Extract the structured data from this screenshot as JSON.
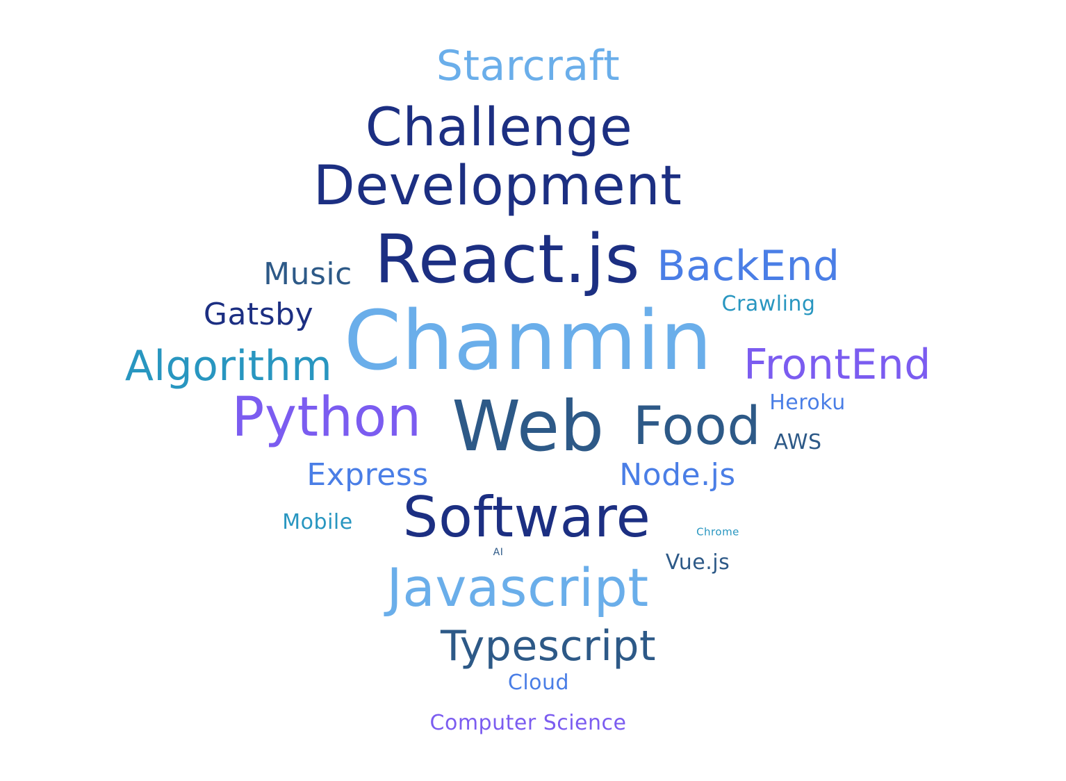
{
  "palette": {
    "light_blue": "#6aaeea",
    "navy": "#1c2f82",
    "blue": "#4a7ee6",
    "teal_blue": "#2896c0",
    "purple": "#7b5cf0",
    "slate": "#2d5987"
  },
  "words": [
    {
      "text": "Starcraft",
      "color": "#6aaeea"
    },
    {
      "text": "Challenge",
      "color": "#1c2f82"
    },
    {
      "text": "Development",
      "color": "#1c2f82"
    },
    {
      "text": "React.js",
      "color": "#1c2f82"
    },
    {
      "text": "BackEnd",
      "color": "#4a7ee6"
    },
    {
      "text": "Music",
      "color": "#2d5987"
    },
    {
      "text": "Crawling",
      "color": "#2896c0"
    },
    {
      "text": "Gatsby",
      "color": "#1c2f82"
    },
    {
      "text": "Chanmin",
      "color": "#6aaeea"
    },
    {
      "text": "Algorithm",
      "color": "#2896c0"
    },
    {
      "text": "FrontEnd",
      "color": "#7b5cf0"
    },
    {
      "text": "Heroku",
      "color": "#4a7ee6"
    },
    {
      "text": "Python",
      "color": "#7b5cf0"
    },
    {
      "text": "Web",
      "color": "#2d5987"
    },
    {
      "text": "Food",
      "color": "#2d5987"
    },
    {
      "text": "AWS",
      "color": "#2d5987"
    },
    {
      "text": "Express",
      "color": "#4a7ee6"
    },
    {
      "text": "Node.js",
      "color": "#4a7ee6"
    },
    {
      "text": "Mobile",
      "color": "#2896c0"
    },
    {
      "text": "Software",
      "color": "#1c2f82"
    },
    {
      "text": "Chrome",
      "color": "#2896c0"
    },
    {
      "text": "AI",
      "color": "#2d5987"
    },
    {
      "text": "Vue.js",
      "color": "#2d5987"
    },
    {
      "text": "Javascript",
      "color": "#6aaeea"
    },
    {
      "text": "Typescript",
      "color": "#2d5987"
    },
    {
      "text": "Cloud",
      "color": "#4a7ee6"
    },
    {
      "text": "Computer Science",
      "color": "#7b5cf0"
    }
  ]
}
